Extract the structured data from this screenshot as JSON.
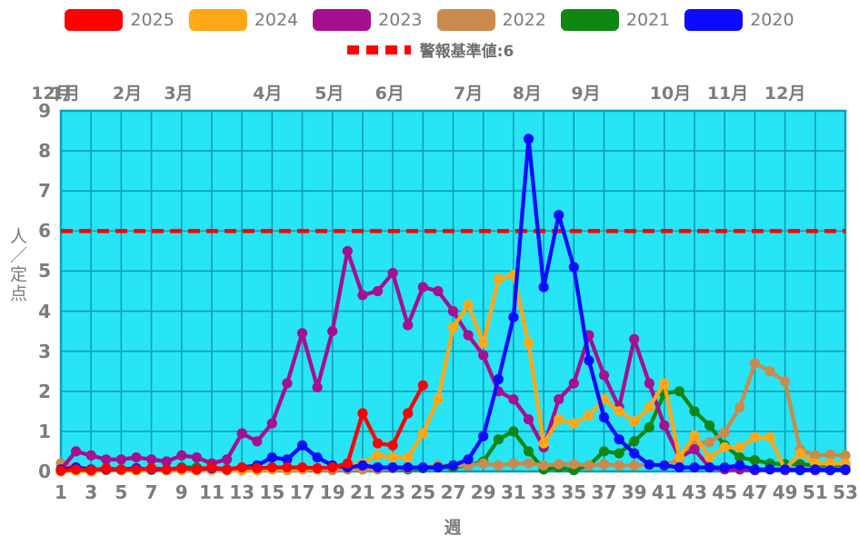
{
  "legend": {
    "items": [
      {
        "label": "2025",
        "color": "#ff0000"
      },
      {
        "label": "2024",
        "color": "#ffa716"
      },
      {
        "label": "2023",
        "color": "#a50f90"
      },
      {
        "label": "2022",
        "color": "#cb8a4d"
      },
      {
        "label": "2021",
        "color": "#0f8712"
      },
      {
        "label": "2020",
        "color": "#0b0bff"
      }
    ]
  },
  "alert": {
    "label": "警報基準値:6",
    "value": 6,
    "color": "#ff0000",
    "marker": "red-dashed-line"
  },
  "axes": {
    "y_title": "人／定点",
    "x_title": "週"
  },
  "chart_data": {
    "type": "line",
    "title": "",
    "xlabel": "週",
    "ylabel": "人／定点",
    "xlim": [
      1,
      53
    ],
    "ylim": [
      0,
      9
    ],
    "grid": true,
    "plot_bg": "#27e5f6",
    "grid_color": "#0c9fb4",
    "alert_threshold": 6,
    "y_ticks": [
      0,
      1,
      2,
      3,
      4,
      5,
      6,
      7,
      8,
      9
    ],
    "x_ticks": [
      1,
      3,
      5,
      7,
      9,
      11,
      13,
      15,
      17,
      19,
      21,
      23,
      25,
      27,
      29,
      31,
      33,
      35,
      37,
      39,
      41,
      43,
      45,
      47,
      49,
      51,
      53
    ],
    "months": [
      {
        "label": "12月",
        "week": 0.4
      },
      {
        "label": "1月",
        "week": 1.3
      },
      {
        "label": "2月",
        "week": 5.4
      },
      {
        "label": "3月",
        "week": 8.8
      },
      {
        "label": "4月",
        "week": 14.7
      },
      {
        "label": "5月",
        "week": 18.8
      },
      {
        "label": "6月",
        "week": 22.8
      },
      {
        "label": "7月",
        "week": 28.0
      },
      {
        "label": "8月",
        "week": 31.9
      },
      {
        "label": "9月",
        "week": 35.8
      },
      {
        "label": "10月",
        "week": 41.4
      },
      {
        "label": "11月",
        "week": 45.2
      },
      {
        "label": "12月",
        "week": 49.0
      }
    ],
    "x": [
      1,
      2,
      3,
      4,
      5,
      6,
      7,
      8,
      9,
      10,
      11,
      12,
      13,
      14,
      15,
      16,
      17,
      18,
      19,
      20,
      21,
      22,
      23,
      24,
      25,
      26,
      27,
      28,
      29,
      30,
      31,
      32,
      33,
      34,
      35,
      36,
      37,
      38,
      39,
      40,
      41,
      42,
      43,
      44,
      45,
      46,
      47,
      48,
      49,
      50,
      51,
      52,
      53
    ],
    "series": [
      {
        "name": "2025",
        "color": "#ff0000",
        "values": [
          0.02,
          0.05,
          0.03,
          0.08,
          0.05,
          0.05,
          0.08,
          0.05,
          0.08,
          0.05,
          0.1,
          0.05,
          0.1,
          0.08,
          0.1,
          0.1,
          0.1,
          0.08,
          0.1,
          0.2,
          1.45,
          0.7,
          0.65,
          1.45,
          2.15,
          null,
          null,
          null,
          null,
          null,
          null,
          null,
          null,
          null,
          null,
          null,
          null,
          null,
          null,
          null,
          null,
          null,
          null,
          null,
          null,
          null,
          null,
          null,
          null,
          null,
          null,
          null,
          null
        ]
      },
      {
        "name": "2024",
        "color": "#ffa716",
        "values": [
          0,
          0.02,
          0,
          0.03,
          0.02,
          0.02,
          0.03,
          0.02,
          0.03,
          0.02,
          0.03,
          0.02,
          0.03,
          0.03,
          0.05,
          0.05,
          0.05,
          0.05,
          0.1,
          0.15,
          0.2,
          0.4,
          0.35,
          0.35,
          0.95,
          1.8,
          3.6,
          4.15,
          3.2,
          4.8,
          4.9,
          3.2,
          0.7,
          1.3,
          1.2,
          1.4,
          1.8,
          1.5,
          1.25,
          1.6,
          2.2,
          0.35,
          0.9,
          0.35,
          0.6,
          0.6,
          0.85,
          0.85,
          0.05,
          0.45,
          0.2,
          0.2,
          0.2
        ]
      },
      {
        "name": "2023",
        "color": "#a50f90",
        "values": [
          0.05,
          0.5,
          0.4,
          0.3,
          0.3,
          0.35,
          0.3,
          0.25,
          0.4,
          0.35,
          0.2,
          0.3,
          0.95,
          0.75,
          1.2,
          2.2,
          3.45,
          2.1,
          3.5,
          5.5,
          4.4,
          4.5,
          4.95,
          3.65,
          4.6,
          4.5,
          4.0,
          3.4,
          2.9,
          2.0,
          1.8,
          1.3,
          0.6,
          1.8,
          2.2,
          3.4,
          2.4,
          1.6,
          3.3,
          2.2,
          1.15,
          0.35,
          0.55,
          0.1,
          0.05,
          0.05,
          0.03,
          0.05,
          0.03,
          0.05,
          0.03,
          0.05,
          0.03
        ]
      },
      {
        "name": "2022",
        "color": "#cb8a4d",
        "values": [
          0.2,
          0.1,
          0.05,
          0.03,
          0.05,
          0.03,
          0.05,
          0.03,
          0.05,
          0.03,
          0.05,
          0.05,
          0.03,
          0.05,
          0.05,
          0.03,
          0.05,
          0.05,
          0.03,
          0.05,
          0.05,
          0.05,
          0.08,
          0.08,
          0.1,
          0.15,
          0.15,
          0.15,
          0.2,
          0.15,
          0.2,
          0.2,
          0.15,
          0.18,
          0.18,
          0.15,
          0.18,
          0.15,
          0.15,
          0.18,
          0.15,
          0.3,
          0.7,
          0.73,
          0.97,
          1.6,
          2.7,
          2.5,
          2.25,
          0.55,
          0.4,
          0.42,
          0.4
        ]
      },
      {
        "name": "2021",
        "color": "#0f8712",
        "values": [
          0.03,
          0.05,
          0.03,
          0.05,
          0.03,
          0.05,
          0.05,
          0.03,
          0.1,
          0.1,
          0.05,
          0.05,
          0.05,
          0.1,
          0.05,
          0.05,
          0.08,
          0.05,
          0.05,
          0.05,
          0.08,
          0.1,
          0.08,
          0.05,
          0.08,
          0.1,
          0.1,
          0.15,
          0.25,
          0.8,
          1.0,
          0.5,
          0.05,
          0.1,
          0.03,
          0.15,
          0.5,
          0.45,
          0.75,
          1.1,
          1.95,
          2.0,
          1.5,
          1.15,
          0.65,
          0.35,
          0.28,
          0.2,
          0.18,
          0.18,
          0.15,
          0.15,
          0.15
        ]
      },
      {
        "name": "2020",
        "color": "#0b0bff",
        "values": [
          0.05,
          0.1,
          0.05,
          0.05,
          0.05,
          0.08,
          0.05,
          0.05,
          0.08,
          0.05,
          0.08,
          0.05,
          0.1,
          0.15,
          0.35,
          0.3,
          0.65,
          0.35,
          0.15,
          0.1,
          0.15,
          0.1,
          0.1,
          0.1,
          0.1,
          0.1,
          0.15,
          0.3,
          0.88,
          2.3,
          3.85,
          8.3,
          4.6,
          6.4,
          5.1,
          2.77,
          1.35,
          0.8,
          0.45,
          0.17,
          0.15,
          0.1,
          0.1,
          0.1,
          0.1,
          0.15,
          0.05,
          0.05,
          0.05,
          0.03,
          0.05,
          0.03,
          0.05
        ]
      }
    ]
  }
}
